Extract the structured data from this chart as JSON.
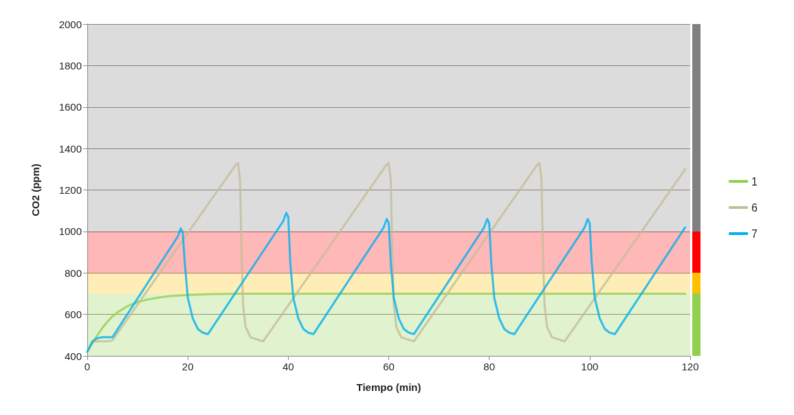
{
  "chart_data": {
    "type": "line",
    "xlabel": "Tiempo (min)",
    "ylabel": "CO2 (ppm)",
    "xlim": [
      0,
      120
    ],
    "xticks": [
      0,
      20,
      40,
      60,
      80,
      100,
      120
    ],
    "ylim": [
      400,
      2000
    ],
    "yticks": [
      400,
      600,
      800,
      1000,
      1200,
      1400,
      1600,
      1800,
      2000
    ],
    "grid": "y",
    "legend": "right",
    "line_style": "solid",
    "bands": [
      {
        "axis": "y",
        "from": 400,
        "to": 700,
        "color": "#92d050"
      },
      {
        "axis": "y",
        "from": 700,
        "to": 800,
        "color": "#ffc000"
      },
      {
        "axis": "y",
        "from": 800,
        "to": 1000,
        "color": "#ff0000"
      },
      {
        "axis": "y",
        "from": 1000,
        "to": 2000,
        "color": "#808080"
      }
    ],
    "series": [
      {
        "name": "1",
        "color": "#92d050",
        "x": [
          0,
          1,
          2,
          3,
          4,
          5,
          6,
          8,
          10,
          12,
          14,
          16,
          18,
          20,
          25,
          30,
          119
        ],
        "values": [
          420,
          460,
          500,
          535,
          565,
          590,
          610,
          640,
          660,
          672,
          681,
          687,
          691,
          694,
          698,
          700,
          700
        ]
      },
      {
        "name": "6",
        "color": "#c4bd97",
        "x": [
          0,
          1,
          2,
          4,
          5,
          29.5,
          30,
          30.4,
          30.7,
          31,
          31.5,
          32.5,
          34,
          35,
          59.5,
          60,
          60.4,
          60.7,
          61,
          61.5,
          62.5,
          64,
          65,
          89.5,
          90,
          90.4,
          90.7,
          91,
          91.5,
          92.5,
          94,
          95,
          119
        ],
        "values": [
          420,
          465,
          470,
          470,
          475,
          1320,
          1330,
          1250,
          900,
          650,
          540,
          490,
          478,
          470,
          1320,
          1330,
          1250,
          900,
          650,
          540,
          490,
          478,
          470,
          1320,
          1330,
          1250,
          900,
          650,
          540,
          490,
          478,
          470,
          1300
        ]
      },
      {
        "name": "7",
        "color": "#00b0f0",
        "x": [
          0,
          1,
          2,
          3,
          5,
          18,
          18.6,
          19,
          19.4,
          20,
          21,
          22,
          23,
          24,
          39,
          39.6,
          40,
          40.4,
          41,
          42,
          43,
          44,
          45,
          59,
          59.6,
          60,
          60.4,
          61,
          62,
          63,
          64,
          65,
          79,
          79.6,
          80,
          80.4,
          81,
          82,
          83,
          84,
          85,
          99,
          99.6,
          100,
          100.4,
          101,
          102,
          103,
          104,
          105,
          119
        ],
        "values": [
          420,
          470,
          485,
          490,
          490,
          975,
          1015,
          995,
          850,
          680,
          580,
          530,
          512,
          505,
          1050,
          1090,
          1070,
          850,
          680,
          580,
          530,
          512,
          505,
          1020,
          1060,
          1040,
          850,
          680,
          580,
          530,
          512,
          505,
          1020,
          1060,
          1040,
          850,
          680,
          580,
          530,
          512,
          505,
          1020,
          1060,
          1040,
          850,
          680,
          580,
          530,
          512,
          505,
          1020
        ]
      }
    ]
  }
}
